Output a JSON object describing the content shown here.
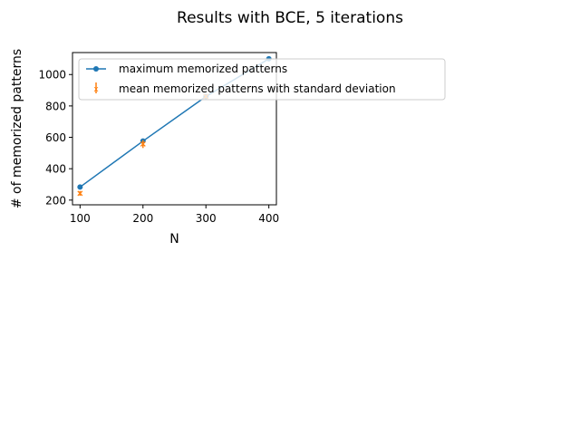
{
  "chart_data": {
    "type": "line",
    "title": "Results with BCE, 5 iterations",
    "xlabel": "N",
    "ylabel": "# of memorized patterns",
    "xlim": [
      88,
      412
    ],
    "ylim": [
      170,
      1140
    ],
    "xticks": [
      100,
      200,
      300,
      400
    ],
    "yticks": [
      200,
      400,
      600,
      800,
      1000
    ],
    "grid": false,
    "legend_position": "upper-left",
    "series": [
      {
        "name": "maximum memorized patterns",
        "kind": "line",
        "color": "#1f77b4",
        "x": [
          100,
          200,
          300,
          400
        ],
        "y": [
          283,
          576,
          860,
          1100
        ]
      },
      {
        "name": "mean memorized patterns with standard deviation",
        "kind": "errorbar",
        "color": "#ff7f0e",
        "x": [
          100,
          200,
          300
        ],
        "y": [
          243,
          557,
          860
        ],
        "err": [
          15,
          25,
          10
        ]
      }
    ]
  }
}
